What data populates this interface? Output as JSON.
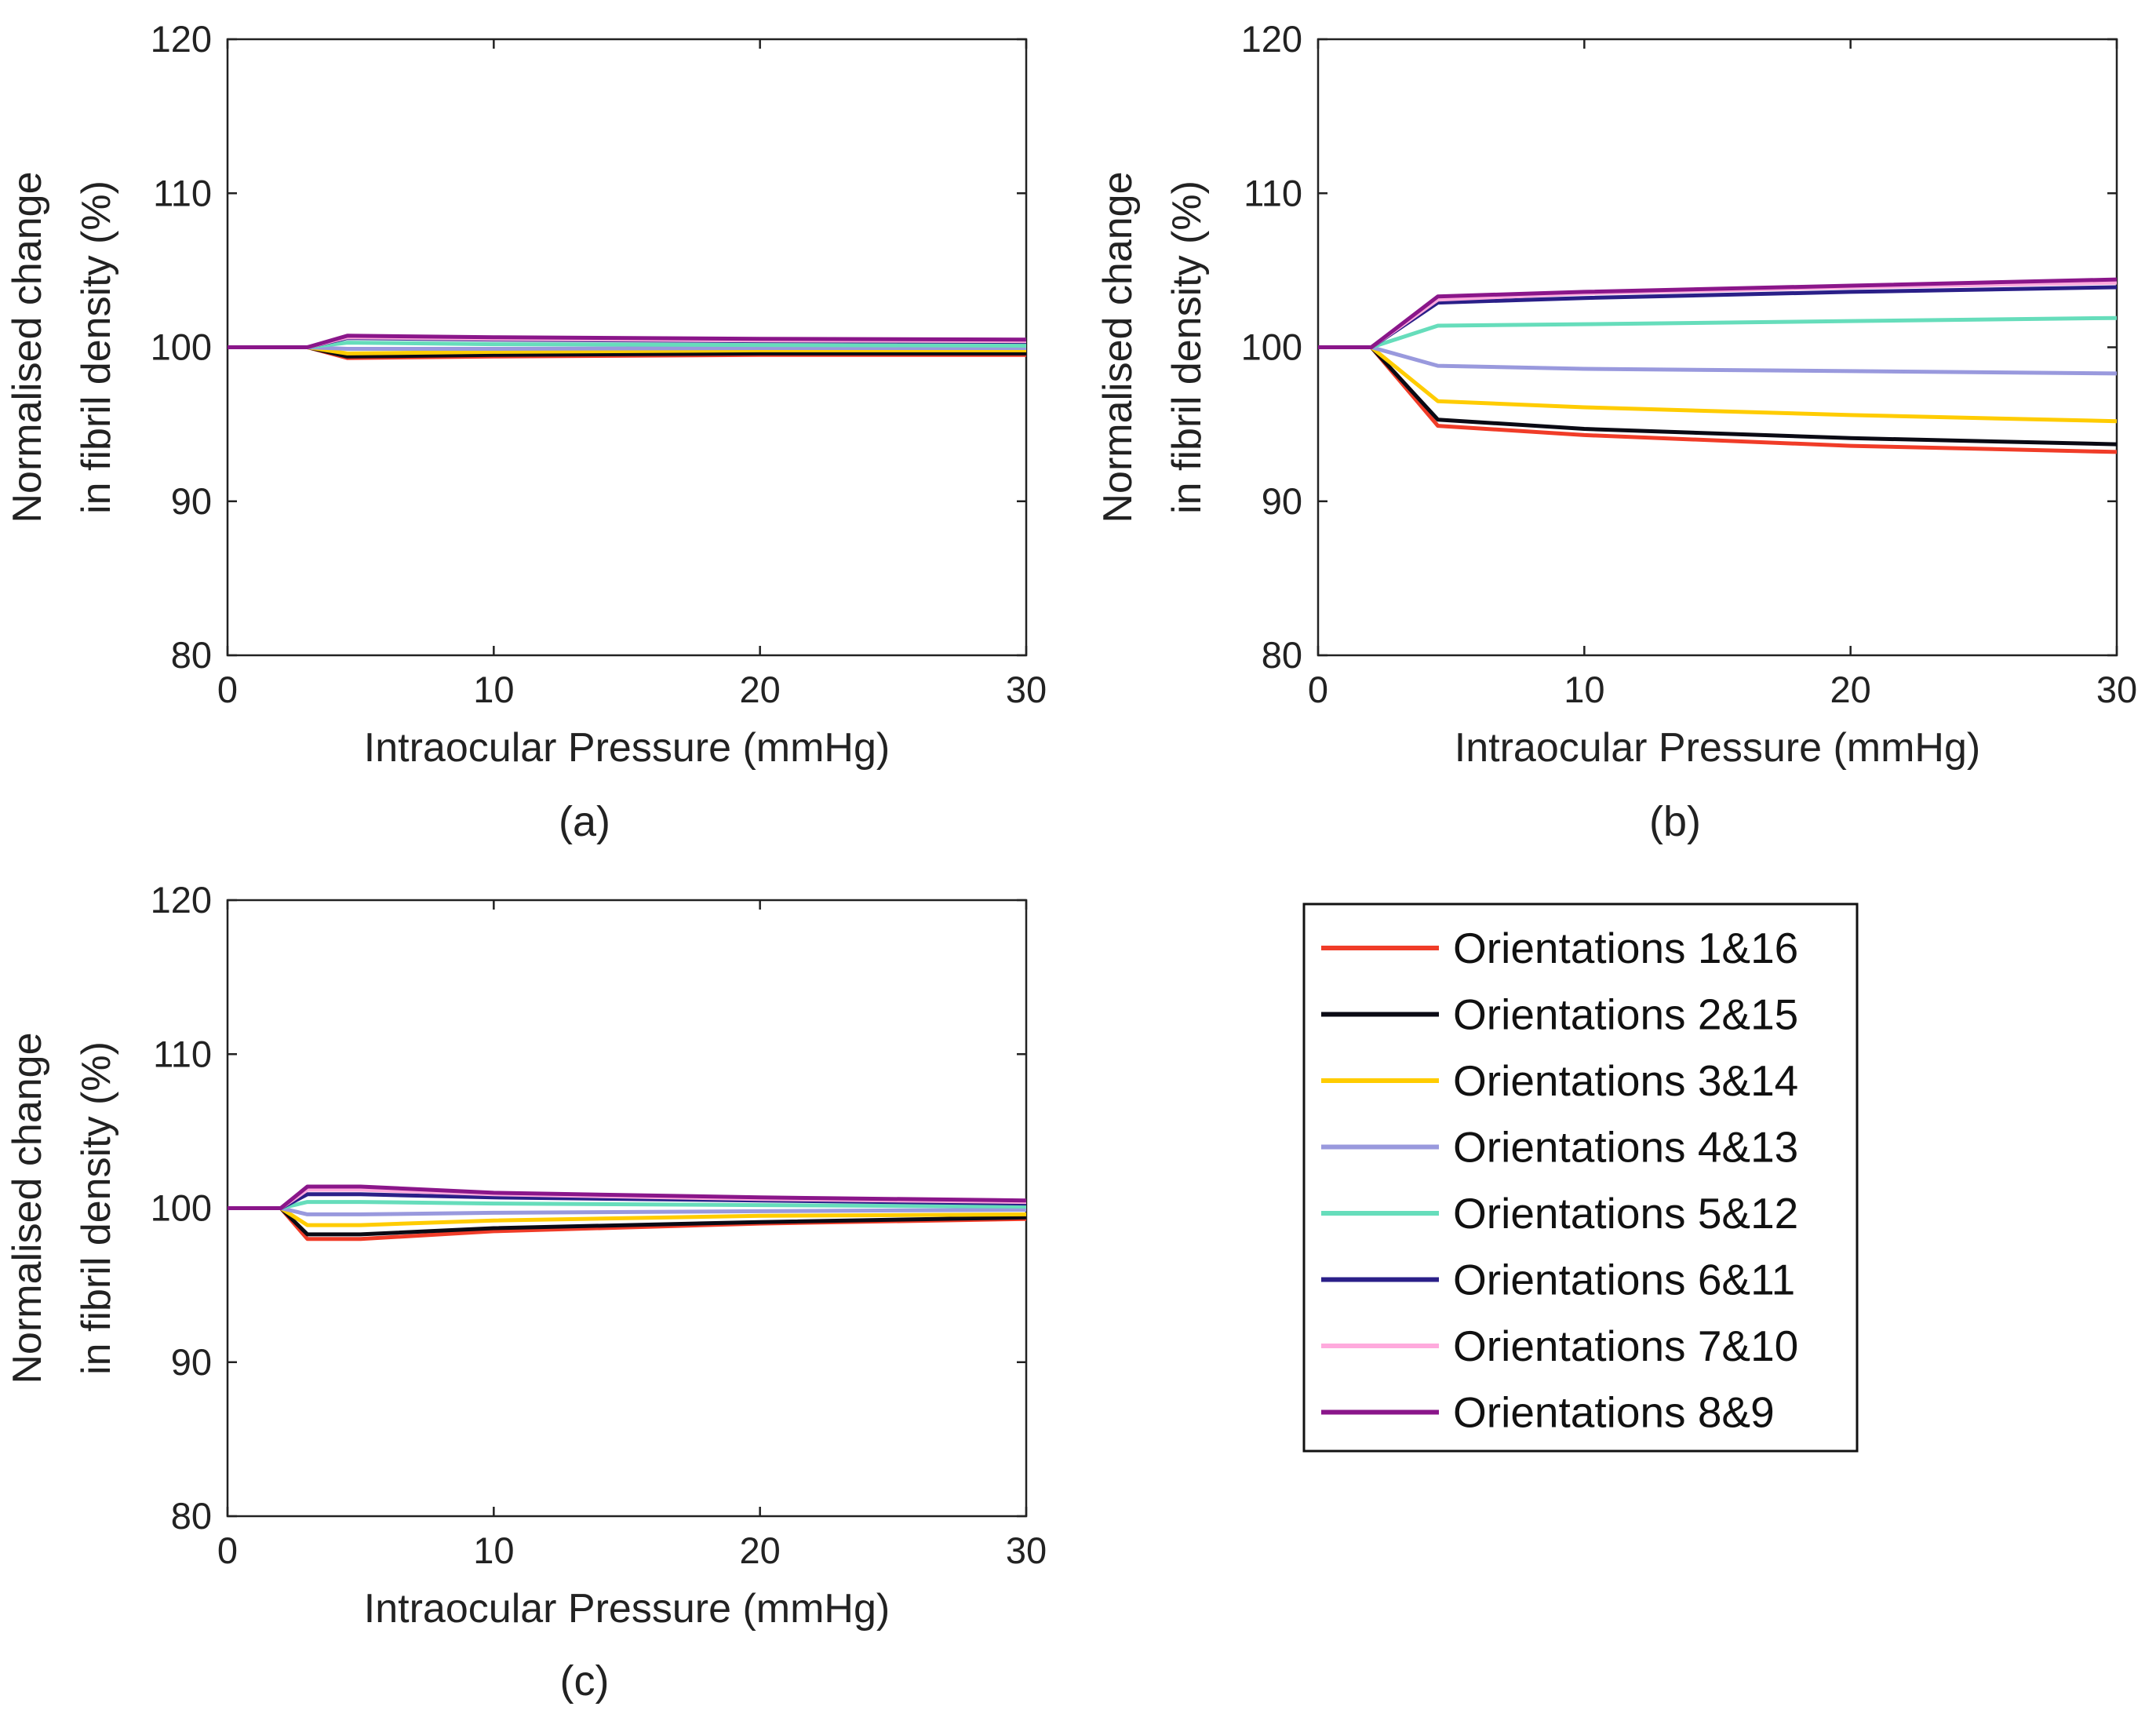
{
  "legend": {
    "entries": [
      {
        "label": "Orientations 1&16",
        "color": "#f03c28"
      },
      {
        "label": "Orientations 2&15",
        "color": "#0a0a14"
      },
      {
        "label": "Orientations 3&14",
        "color": "#ffcc00"
      },
      {
        "label": "Orientations 4&13",
        "color": "#9999dd"
      },
      {
        "label": "Orientations 5&12",
        "color": "#66ddbb"
      },
      {
        "label": "Orientations 6&11",
        "color": "#2a1f88"
      },
      {
        "label": "Orientations 7&10",
        "color": "#ffaadd"
      },
      {
        "label": "Orientations 8&9",
        "color": "#8a168a"
      }
    ]
  },
  "chart_data": [
    {
      "type": "line",
      "caption": "(a)",
      "xlabel": "Intraocular Pressure (mmHg)",
      "ylabel": "Normalised change in fibril density (%)",
      "ylabel_lines": [
        "Normalised change",
        "in fibril density (%)"
      ],
      "xlim": [
        0,
        30
      ],
      "ylim": [
        80,
        120
      ],
      "xticks": [
        0,
        10,
        20,
        30
      ],
      "yticks": [
        80,
        90,
        100,
        110,
        120
      ],
      "xtick_labels": [
        "0",
        "10",
        "20",
        "30"
      ],
      "ytick_labels": [
        "80",
        "90",
        "100",
        "110",
        "120"
      ],
      "grid": false,
      "x": [
        0,
        3,
        4.5,
        10,
        20,
        30
      ],
      "series": [
        {
          "name": "Orientations 1&16",
          "values": [
            100,
            100,
            99.3,
            99.4,
            99.5,
            99.5
          ]
        },
        {
          "name": "Orientations 2&15",
          "values": [
            100,
            100,
            99.4,
            99.5,
            99.6,
            99.6
          ]
        },
        {
          "name": "Orientations 3&14",
          "values": [
            100,
            100,
            99.6,
            99.7,
            99.8,
            99.8
          ]
        },
        {
          "name": "Orientations 4&13",
          "values": [
            100,
            100,
            99.9,
            99.9,
            99.95,
            99.95
          ]
        },
        {
          "name": "Orientations 5&12",
          "values": [
            100,
            100,
            100.3,
            100.2,
            100.15,
            100.1
          ]
        },
        {
          "name": "Orientations 6&11",
          "values": [
            100,
            100,
            100.6,
            100.5,
            100.4,
            100.35
          ]
        },
        {
          "name": "Orientations 7&10",
          "values": [
            100,
            100,
            100.65,
            100.55,
            100.45,
            100.4
          ]
        },
        {
          "name": "Orientations 8&9",
          "values": [
            100,
            100,
            100.75,
            100.65,
            100.55,
            100.5
          ]
        }
      ]
    },
    {
      "type": "line",
      "caption": "(b)",
      "xlabel": "Intraocular Pressure (mmHg)",
      "ylabel": "Normalised change in fibril density (%)",
      "ylabel_lines": [
        "Normalised change",
        "in fibril density (%)"
      ],
      "xlim": [
        0,
        30
      ],
      "ylim": [
        80,
        120
      ],
      "xticks": [
        0,
        10,
        20,
        30
      ],
      "yticks": [
        80,
        90,
        100,
        110,
        120
      ],
      "xtick_labels": [
        "0",
        "10",
        "20",
        "30"
      ],
      "ytick_labels": [
        "80",
        "90",
        "100",
        "110",
        "120"
      ],
      "grid": false,
      "x": [
        0,
        2,
        4.5,
        10,
        20,
        30
      ],
      "series": [
        {
          "name": "Orientations 1&16",
          "values": [
            100,
            100,
            94.9,
            94.3,
            93.6,
            93.2
          ]
        },
        {
          "name": "Orientations 2&15",
          "values": [
            100,
            100,
            95.3,
            94.7,
            94.1,
            93.7
          ]
        },
        {
          "name": "Orientations 3&14",
          "values": [
            100,
            100,
            96.5,
            96.1,
            95.6,
            95.2
          ]
        },
        {
          "name": "Orientations 4&13",
          "values": [
            100,
            100,
            98.8,
            98.6,
            98.45,
            98.3
          ]
        },
        {
          "name": "Orientations 5&12",
          "values": [
            100,
            100,
            101.4,
            101.5,
            101.7,
            101.9
          ]
        },
        {
          "name": "Orientations 6&11",
          "values": [
            100,
            100,
            102.9,
            103.2,
            103.6,
            103.9
          ]
        },
        {
          "name": "Orientations 7&10",
          "values": [
            100,
            100,
            103.1,
            103.5,
            103.9,
            104.2
          ]
        },
        {
          "name": "Orientations 8&9",
          "values": [
            100,
            100,
            103.3,
            103.6,
            104.0,
            104.4
          ]
        }
      ]
    },
    {
      "type": "line",
      "caption": "(c)",
      "xlabel": "Intraocular Pressure (mmHg)",
      "ylabel": "Normalised change in fibril density (%)",
      "ylabel_lines": [
        "Normalised change",
        "in fibril density (%)"
      ],
      "xlim": [
        0,
        30
      ],
      "ylim": [
        80,
        120
      ],
      "xticks": [
        0,
        10,
        20,
        30
      ],
      "yticks": [
        80,
        90,
        100,
        110,
        120
      ],
      "xtick_labels": [
        "0",
        "10",
        "20",
        "30"
      ],
      "ytick_labels": [
        "80",
        "90",
        "100",
        "110",
        "120"
      ],
      "grid": false,
      "x": [
        0,
        2,
        3,
        5,
        10,
        20,
        30
      ],
      "series": [
        {
          "name": "Orientations 1&16",
          "values": [
            100,
            100,
            98.0,
            98.0,
            98.5,
            99.0,
            99.3
          ]
        },
        {
          "name": "Orientations 2&15",
          "values": [
            100,
            100,
            98.3,
            98.3,
            98.7,
            99.1,
            99.4
          ]
        },
        {
          "name": "Orientations 3&14",
          "values": [
            100,
            100,
            98.9,
            98.9,
            99.2,
            99.5,
            99.6
          ]
        },
        {
          "name": "Orientations 4&13",
          "values": [
            100,
            100,
            99.6,
            99.6,
            99.7,
            99.8,
            99.9
          ]
        },
        {
          "name": "Orientations 5&12",
          "values": [
            100,
            100,
            100.4,
            100.4,
            100.3,
            100.2,
            100.1
          ]
        },
        {
          "name": "Orientations 6&11",
          "values": [
            100,
            100,
            100.9,
            100.9,
            100.7,
            100.5,
            100.3
          ]
        },
        {
          "name": "Orientations 7&10",
          "values": [
            100,
            100,
            101.2,
            101.2,
            100.9,
            100.6,
            100.4
          ]
        },
        {
          "name": "Orientations 8&9",
          "values": [
            100,
            100,
            101.4,
            101.4,
            101.0,
            100.7,
            100.5
          ]
        }
      ]
    }
  ]
}
